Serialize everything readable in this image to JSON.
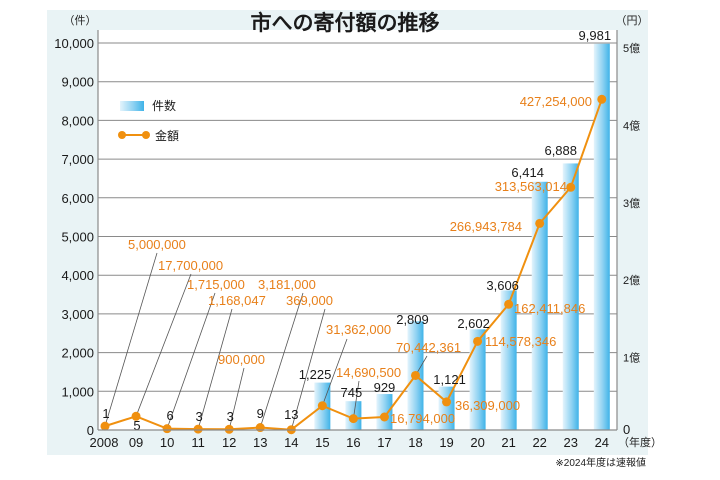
{
  "chart_data": {
    "type": "bar+line",
    "title": "市への寄付額の推移",
    "left_axis_unit": "（件）",
    "right_axis_unit": "（円）",
    "x_axis_unit": "（年度）",
    "footnote": "※2024年度は速報値",
    "categories": [
      "2008",
      "09",
      "10",
      "11",
      "12",
      "13",
      "14",
      "15",
      "16",
      "17",
      "18",
      "19",
      "20",
      "21",
      "22",
      "23",
      "24"
    ],
    "left_ylim": [
      0,
      10000
    ],
    "left_ticks": [
      {
        "value": 0,
        "label": "0"
      },
      {
        "value": 1000,
        "label": "1,000"
      },
      {
        "value": 2000,
        "label": "2,000"
      },
      {
        "value": 3000,
        "label": "3,000"
      },
      {
        "value": 4000,
        "label": "4,000"
      },
      {
        "value": 5000,
        "label": "5,000"
      },
      {
        "value": 6000,
        "label": "6,000"
      },
      {
        "value": 7000,
        "label": "7,000"
      },
      {
        "value": 8000,
        "label": "8,000"
      },
      {
        "value": 9000,
        "label": "9,000"
      },
      {
        "value": 10000,
        "label": "10,000"
      }
    ],
    "right_ylim": [
      0,
      500000000
    ],
    "right_ticks": [
      {
        "value": 0,
        "label": "0"
      },
      {
        "value": 100000000,
        "label": "1億"
      },
      {
        "value": 200000000,
        "label": "2億"
      },
      {
        "value": 300000000,
        "label": "3億"
      },
      {
        "value": 400000000,
        "label": "4億"
      },
      {
        "value": 500000000,
        "label": "5億"
      }
    ],
    "grid": true,
    "legend_position": "top-left",
    "series": [
      {
        "name": "件数",
        "type": "bar",
        "axis": "left",
        "color": "#5bc0ea",
        "values": [
          1,
          5,
          6,
          3,
          3,
          9,
          13,
          1225,
          745,
          929,
          2809,
          1121,
          2602,
          3606,
          6414,
          6888,
          9981
        ],
        "labels": [
          "1",
          "5",
          "6",
          "3",
          "3",
          "9",
          "13",
          "1,225",
          "745",
          "929",
          "2,809",
          "1,121",
          "2,602",
          "3,606",
          "6,414",
          "6,888",
          "9,981"
        ]
      },
      {
        "name": "金額",
        "type": "line",
        "axis": "right",
        "color": "#f0900f",
        "values": [
          5000000,
          17700000,
          1715000,
          1168047,
          900000,
          3181000,
          369000,
          31362000,
          14690500,
          16794000,
          70442361,
          36309000,
          114578346,
          162411846,
          266943784,
          313563014,
          427254000
        ],
        "labels": [
          "5,000,000",
          "17,700,000",
          "1,715,000",
          "1,168,047",
          "900,000",
          "3,181,000",
          "369,000",
          "31,362,000",
          "14,690,500",
          "16,794,000",
          "70,442,361",
          "36,309,000",
          "114,578,346",
          "162,411,846",
          "266,943,784",
          "313,563,014",
          "427,254,000"
        ]
      }
    ]
  }
}
